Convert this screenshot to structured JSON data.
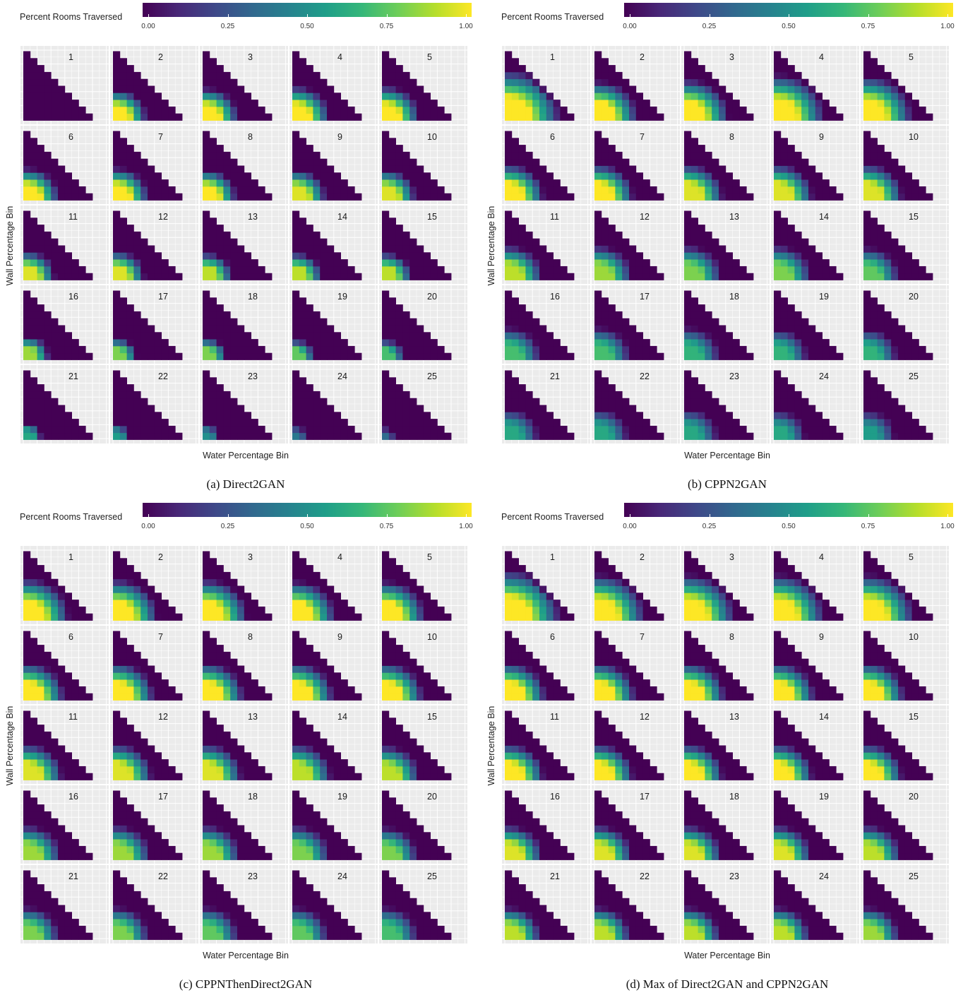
{
  "colorbar": {
    "title": "Percent Rooms Traversed",
    "ticks": [
      "0.00",
      "0.25",
      "0.50",
      "0.75",
      "1.00"
    ],
    "colormap": "viridis",
    "range": [
      0,
      1
    ]
  },
  "axes": {
    "x_title": "Water Percentage Bin",
    "y_title": "Wall Percentage Bin"
  },
  "facet_labels": [
    "1",
    "2",
    "3",
    "4",
    "5",
    "6",
    "7",
    "8",
    "9",
    "10",
    "11",
    "12",
    "13",
    "14",
    "15",
    "16",
    "17",
    "18",
    "19",
    "20",
    "21",
    "22",
    "23",
    "24",
    "25"
  ],
  "panels": [
    {
      "caption": "(a) Direct2GAN"
    },
    {
      "caption": "(b) CPPN2GAN"
    },
    {
      "caption": "(c) CPPNThenDirect2GAN"
    },
    {
      "caption": "(d) Max of Direct2GAN and CPPN2GAN"
    }
  ],
  "chart_data": [
    {
      "type": "heatmap",
      "title": "(a) Direct2GAN",
      "xlabel": "Water Percentage Bin",
      "ylabel": "Wall Percentage Bin",
      "legend_title": "Percent Rooms Traversed",
      "facets": 25,
      "grid": "triangular 10x10 (row r has 10-r cells)",
      "value_range": [
        0,
        1
      ],
      "facet_params": {
        "peak_level": [
          0.0,
          1,
          1,
          1,
          1,
          1,
          1,
          1,
          0.95,
          0.95,
          0.95,
          0.95,
          0.9,
          0.9,
          0.9,
          0.85,
          0.8,
          0.8,
          0.75,
          0.7,
          0.6,
          0.55,
          0.5,
          0.4,
          0.35
        ],
        "extent": [
          0.5,
          3.2,
          3.4,
          3.6,
          3.6,
          3.4,
          3.4,
          3.2,
          3.2,
          3.2,
          3.0,
          3.0,
          2.8,
          2.8,
          2.8,
          2.4,
          2.2,
          2.2,
          2.0,
          2.0,
          1.6,
          1.4,
          1.4,
          1.2,
          1.0
        ]
      },
      "facet_hi_values": [
        0.0,
        1,
        1,
        1,
        1,
        1,
        1,
        1,
        0.95,
        0.95,
        0.95,
        0.95,
        0.9,
        0.9,
        0.9,
        0.85,
        0.8,
        0.8,
        0.75,
        0.7,
        0.6,
        0.55,
        0.5,
        0.4,
        0.35
      ]
    },
    {
      "type": "heatmap",
      "title": "(b) CPPN2GAN",
      "xlabel": "Water Percentage Bin",
      "ylabel": "Wall Percentage Bin",
      "legend_title": "Percent Rooms Traversed",
      "facets": 25,
      "grid": "triangular 10x10 (row r has 10-r cells)",
      "value_range": [
        0,
        1
      ],
      "facet_params": {
        "peak_level": [
          1,
          1,
          1,
          1,
          1,
          1,
          1,
          0.95,
          0.95,
          0.95,
          0.9,
          0.85,
          0.8,
          0.8,
          0.75,
          0.7,
          0.7,
          0.65,
          0.65,
          0.65,
          0.6,
          0.6,
          0.6,
          0.6,
          0.55
        ],
        "extent": [
          5.5,
          4.2,
          4.4,
          5.0,
          4.8,
          3.8,
          3.8,
          3.8,
          3.8,
          3.8,
          3.6,
          3.6,
          3.6,
          3.6,
          3.4,
          3.4,
          3.4,
          3.4,
          3.2,
          3.2,
          3.2,
          3.2,
          3.2,
          3.0,
          3.0
        ]
      },
      "facet_hi_values": [
        1,
        1,
        1,
        1,
        1,
        1,
        1,
        0.95,
        0.95,
        0.95,
        0.9,
        0.85,
        0.8,
        0.8,
        0.75,
        0.7,
        0.7,
        0.65,
        0.65,
        0.65,
        0.6,
        0.6,
        0.6,
        0.6,
        0.55
      ]
    },
    {
      "type": "heatmap",
      "title": "(c) CPPNThenDirect2GAN",
      "xlabel": "Water Percentage Bin",
      "ylabel": "Wall Percentage Bin",
      "legend_title": "Percent Rooms Traversed",
      "facets": 25,
      "grid": "triangular 10x10 (row r has 10-r cells)",
      "value_range": [
        0,
        1
      ],
      "facet_params": {
        "peak_level": [
          1,
          1,
          1,
          1,
          1,
          1,
          1,
          1,
          1,
          1,
          0.95,
          0.95,
          0.95,
          0.9,
          0.9,
          0.85,
          0.85,
          0.85,
          0.8,
          0.8,
          0.8,
          0.8,
          0.75,
          0.75,
          0.7
        ],
        "extent": [
          4.5,
          4.4,
          4.4,
          4.2,
          4.2,
          4.0,
          4.0,
          4.0,
          4.0,
          4.0,
          3.8,
          3.8,
          3.8,
          3.8,
          3.6,
          3.6,
          3.6,
          3.6,
          3.6,
          3.4,
          3.4,
          3.4,
          3.4,
          3.4,
          3.4
        ]
      },
      "facet_hi_values": [
        1,
        1,
        1,
        1,
        1,
        1,
        1,
        1,
        1,
        1,
        0.95,
        0.95,
        0.95,
        0.9,
        0.9,
        0.85,
        0.85,
        0.85,
        0.8,
        0.8,
        0.8,
        0.8,
        0.75,
        0.75,
        0.7
      ]
    },
    {
      "type": "heatmap",
      "title": "(d) Max of Direct2GAN and CPPN2GAN",
      "xlabel": "Water Percentage Bin",
      "ylabel": "Wall Percentage Bin",
      "legend_title": "Percent Rooms Traversed",
      "facets": 25,
      "grid": "triangular 10x10 (row r has 10-r cells)",
      "value_range": [
        0,
        1
      ],
      "facet_params": {
        "peak_level": [
          1,
          1,
          1,
          1,
          1,
          1,
          1,
          1,
          1,
          1,
          1,
          1,
          1,
          1,
          1,
          0.95,
          0.95,
          0.95,
          0.95,
          0.9,
          0.9,
          0.9,
          0.9,
          0.9,
          0.85
        ],
        "extent": [
          5.5,
          5.0,
          5.0,
          5.0,
          5.0,
          4.0,
          4.0,
          4.0,
          4.0,
          4.0,
          3.8,
          3.8,
          3.8,
          3.8,
          3.8,
          3.6,
          3.6,
          3.6,
          3.6,
          3.6,
          3.4,
          3.4,
          3.4,
          3.4,
          3.4
        ]
      },
      "facet_hi_values": [
        1,
        1,
        1,
        1,
        1,
        1,
        1,
        1,
        1,
        1,
        1,
        1,
        1,
        1,
        1,
        0.95,
        0.95,
        0.95,
        0.95,
        0.9,
        0.9,
        0.9,
        0.9,
        0.9,
        0.85
      ]
    }
  ]
}
